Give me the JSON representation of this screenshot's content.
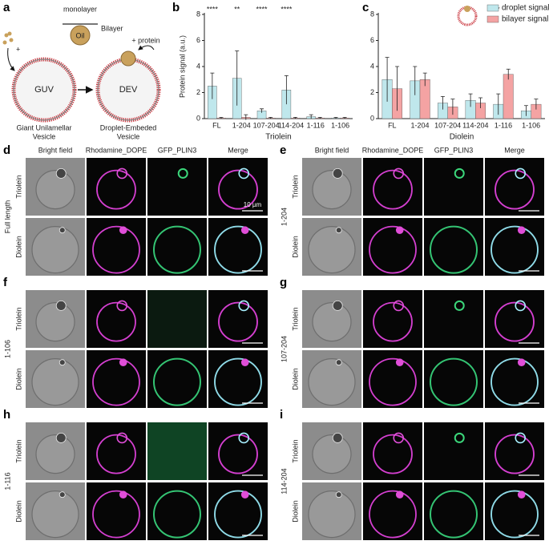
{
  "schematic": {
    "label": "a",
    "monolayer": "monolayer",
    "oil": "Oil",
    "bilayer": "Bilayer",
    "protein": "+ protein",
    "plus": "+",
    "guv": "GUV",
    "dev": "DEV",
    "guv_name": [
      "Giant Unilamellar",
      "Vesicle"
    ],
    "dev_name": [
      "Droplet-Embeded",
      "Vesicle"
    ]
  },
  "chart_data": [
    {
      "type": "bar",
      "label": "b",
      "ylabel": "Protein signal (a.u.)",
      "xlabel": "Triolein",
      "categories": [
        "FL",
        "1-204",
        "107-204",
        "114-204",
        "1-116",
        "1-106"
      ],
      "series": [
        {
          "color": "#bfe7ec",
          "values": [
            2.5,
            3.1,
            0.6,
            2.2,
            0.15,
            0.05
          ],
          "errors": [
            1.0,
            2.1,
            0.15,
            1.1,
            0.15,
            0.05
          ]
        },
        {
          "color": "#f4a3a3",
          "values": [
            0.05,
            0.1,
            0.05,
            0.05,
            0.05,
            0.05
          ],
          "errors": [
            0.05,
            0.2,
            0.05,
            0.05,
            0.05,
            0.05
          ]
        }
      ],
      "annotations": [
        "****",
        "**",
        "****",
        "****",
        null,
        null
      ],
      "ylim": [
        0,
        8
      ],
      "yticks": [
        0,
        2,
        4,
        6,
        8
      ]
    },
    {
      "type": "bar",
      "label": "c",
      "xlabel": "Diolein",
      "categories": [
        "FL",
        "1-204",
        "107-204",
        "114-204",
        "1-116",
        "1-106"
      ],
      "series": [
        {
          "name": "droplet signal",
          "color": "#bfe7ec",
          "values": [
            3.0,
            2.9,
            1.2,
            1.4,
            1.1,
            0.6
          ],
          "errors": [
            1.7,
            1.1,
            0.5,
            0.5,
            0.8,
            0.4
          ]
        },
        {
          "name": "bilayer signal",
          "color": "#f4a3a3",
          "values": [
            2.3,
            3.0,
            0.9,
            1.2,
            3.4,
            1.1
          ],
          "errors": [
            1.7,
            0.5,
            0.6,
            0.4,
            0.4,
            0.4
          ]
        }
      ],
      "annotations": [
        null,
        null,
        null,
        null,
        "*",
        null
      ],
      "legend": "top-right",
      "ylim": [
        0,
        8
      ],
      "yticks": [
        0,
        2,
        4,
        6,
        8
      ]
    }
  ],
  "micrographs": {
    "columns": [
      "Bright field",
      "Rhodamine_DOPE",
      "GFP_PLIN3",
      "Merge"
    ],
    "rows": [
      "Triolein",
      "Diolein"
    ],
    "scale_bar": "10 µm",
    "panels": [
      {
        "label": "d",
        "construct": "Full length"
      },
      {
        "label": "e",
        "construct": "1-204"
      },
      {
        "label": "f",
        "construct": "1-106"
      },
      {
        "label": "g",
        "construct": "107-204"
      },
      {
        "label": "h",
        "construct": "1-116"
      },
      {
        "label": "i",
        "construct": "114-204"
      }
    ]
  }
}
